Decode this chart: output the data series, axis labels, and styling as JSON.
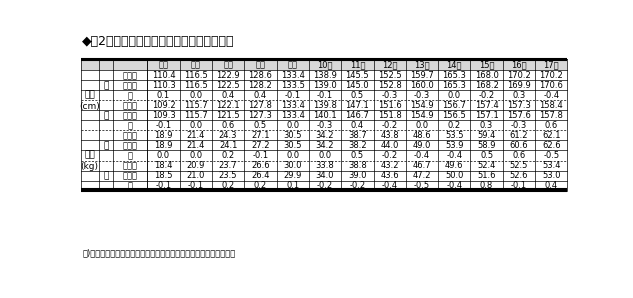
{
  "title": "◆表2　身長・体重の平均値の全国との比較",
  "note": "注)「差」は埼玉県の数値から全国の数値を差し引いたものである。",
  "age_headers": [
    "５歳",
    "６歳",
    "７歳",
    "８歳",
    "９歳",
    "10歳",
    "11歳",
    "12歳",
    "13歳",
    "14歳",
    "15歳",
    "16歳",
    "17歳"
  ],
  "sections": [
    {
      "label": "身長\n(cm)",
      "groups": [
        {
          "gender": "男",
          "rows": [
            {
              "name": "埼玉県",
              "values": [
                110.4,
                116.5,
                122.9,
                128.6,
                133.4,
                138.9,
                145.5,
                152.5,
                159.7,
                165.3,
                168.0,
                170.2,
                170.2
              ]
            },
            {
              "name": "全　国",
              "values": [
                110.3,
                116.5,
                122.5,
                128.2,
                133.5,
                139.0,
                145.0,
                152.8,
                160.0,
                165.3,
                168.2,
                169.9,
                170.6
              ]
            },
            {
              "name": "差",
              "values": [
                0.1,
                0.0,
                0.4,
                0.4,
                -0.1,
                -0.1,
                0.5,
                -0.3,
                -0.3,
                0.0,
                -0.2,
                0.3,
                -0.4
              ]
            }
          ]
        },
        {
          "gender": "女",
          "rows": [
            {
              "name": "埼玉県",
              "values": [
                109.2,
                115.7,
                122.1,
                127.8,
                133.4,
                139.8,
                147.1,
                151.6,
                154.9,
                156.7,
                157.4,
                157.3,
                158.4
              ]
            },
            {
              "name": "全　国",
              "values": [
                109.3,
                115.7,
                121.5,
                127.3,
                133.4,
                140.1,
                146.7,
                151.8,
                154.9,
                156.5,
                157.1,
                157.6,
                157.8
              ]
            },
            {
              "name": "差",
              "values": [
                -0.1,
                0.0,
                0.6,
                0.5,
                0.0,
                -0.3,
                0.4,
                -0.2,
                0.0,
                0.2,
                0.3,
                -0.3,
                0.6
              ]
            }
          ]
        }
      ]
    },
    {
      "label": "体重\n(kg)",
      "groups": [
        {
          "gender": "男",
          "rows": [
            {
              "name": "埼玉県",
              "values": [
                18.9,
                21.4,
                24.3,
                27.1,
                30.5,
                34.2,
                38.7,
                43.8,
                48.6,
                53.5,
                59.4,
                61.2,
                62.1
              ]
            },
            {
              "name": "全　国",
              "values": [
                18.9,
                21.4,
                24.1,
                27.2,
                30.5,
                34.2,
                38.2,
                44.0,
                49.0,
                53.9,
                58.9,
                60.6,
                62.6
              ]
            },
            {
              "name": "差",
              "values": [
                0.0,
                0.0,
                0.2,
                -0.1,
                0.0,
                0.0,
                0.5,
                -0.2,
                -0.4,
                -0.4,
                0.5,
                0.6,
                -0.5
              ]
            }
          ]
        },
        {
          "gender": "女",
          "rows": [
            {
              "name": "埼玉県",
              "values": [
                18.4,
                20.9,
                23.7,
                26.6,
                30.0,
                33.8,
                38.8,
                43.2,
                46.7,
                49.6,
                52.4,
                52.5,
                53.4
              ]
            },
            {
              "name": "全　国",
              "values": [
                18.5,
                21.0,
                23.5,
                26.4,
                29.9,
                34.0,
                39.0,
                43.6,
                47.2,
                50.0,
                51.6,
                52.6,
                53.0
              ]
            },
            {
              "name": "差",
              "values": [
                -0.1,
                -0.1,
                0.2,
                0.2,
                0.1,
                -0.2,
                -0.2,
                -0.4,
                -0.5,
                -0.4,
                0.8,
                -0.1,
                0.4
              ]
            }
          ]
        }
      ]
    }
  ],
  "bg_color": "#ffffff",
  "font_size": 6.0,
  "title_font_size": 9.0
}
